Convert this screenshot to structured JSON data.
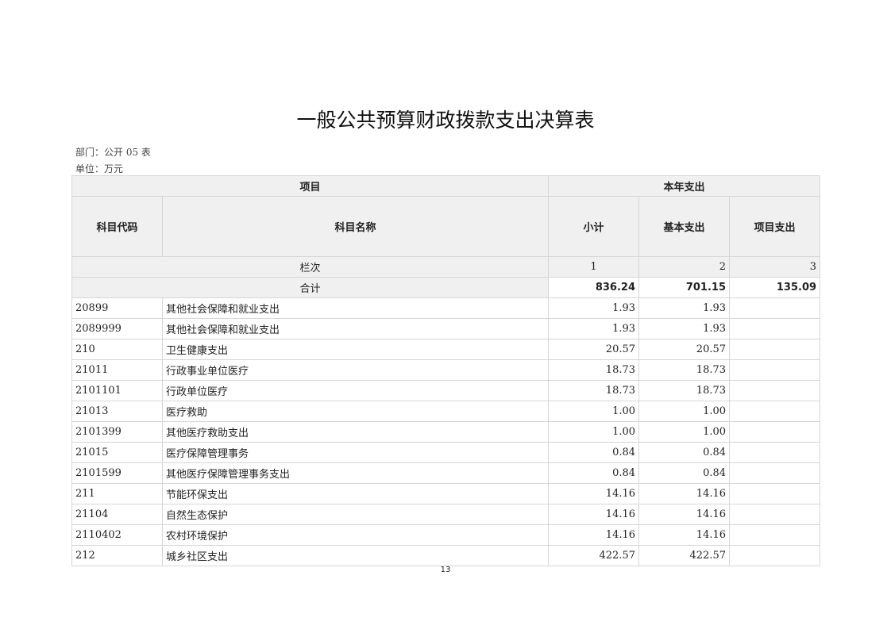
{
  "title": "一般公共预算财政拨款支出决算表",
  "dept": "部门：公开 05 表",
  "unit": "单位：万元",
  "headers": {
    "project": "项目",
    "current_year": "本年支出",
    "code": "科目代码",
    "name": "科目名称",
    "subtotal": "小计",
    "basic": "基本支出",
    "program": "项目支出"
  },
  "column_row": {
    "label": "栏次",
    "c1": "1",
    "c2": "2",
    "c3": "3"
  },
  "total_row": {
    "label": "合计",
    "subtotal": "836.24",
    "basic": "701.15",
    "program": "135.09"
  },
  "rows": [
    {
      "code": "20899",
      "name": "其他社会保障和就业支出",
      "subtotal": "1.93",
      "basic": "1.93",
      "program": ""
    },
    {
      "code": "2089999",
      "name": "其他社会保障和就业支出",
      "subtotal": "1.93",
      "basic": "1.93",
      "program": ""
    },
    {
      "code": "210",
      "name": "卫生健康支出",
      "subtotal": "20.57",
      "basic": "20.57",
      "program": ""
    },
    {
      "code": "21011",
      "name": "行政事业单位医疗",
      "subtotal": "18.73",
      "basic": "18.73",
      "program": ""
    },
    {
      "code": "2101101",
      "name": "行政单位医疗",
      "subtotal": "18.73",
      "basic": "18.73",
      "program": ""
    },
    {
      "code": "21013",
      "name": "医疗救助",
      "subtotal": "1.00",
      "basic": "1.00",
      "program": ""
    },
    {
      "code": "2101399",
      "name": "其他医疗救助支出",
      "subtotal": "1.00",
      "basic": "1.00",
      "program": ""
    },
    {
      "code": "21015",
      "name": "医疗保障管理事务",
      "subtotal": "0.84",
      "basic": "0.84",
      "program": ""
    },
    {
      "code": "2101599",
      "name": "其他医疗保障管理事务支出",
      "subtotal": "0.84",
      "basic": "0.84",
      "program": ""
    },
    {
      "code": "211",
      "name": "节能环保支出",
      "subtotal": "14.16",
      "basic": "14.16",
      "program": ""
    },
    {
      "code": "21104",
      "name": "自然生态保护",
      "subtotal": "14.16",
      "basic": "14.16",
      "program": ""
    },
    {
      "code": "2110402",
      "name": "农村环境保护",
      "subtotal": "14.16",
      "basic": "14.16",
      "program": ""
    },
    {
      "code": "212",
      "name": "城乡社区支出",
      "subtotal": "422.57",
      "basic": "422.57",
      "program": ""
    }
  ],
  "page_number": "13"
}
